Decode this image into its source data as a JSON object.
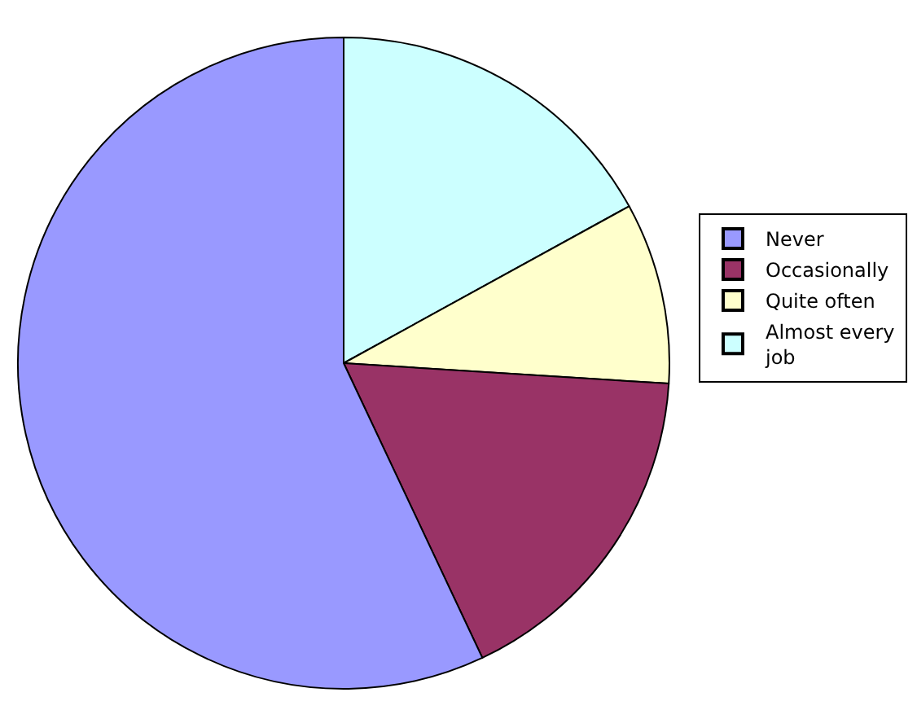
{
  "chart_data": {
    "type": "pie",
    "categories": [
      "Never",
      "Occasionally",
      "Quite often",
      "Almost every job"
    ],
    "values": [
      57,
      17,
      9,
      17
    ],
    "colors": [
      "#9999ff",
      "#993366",
      "#ffffcc",
      "#ccffff"
    ],
    "legend": "right"
  }
}
